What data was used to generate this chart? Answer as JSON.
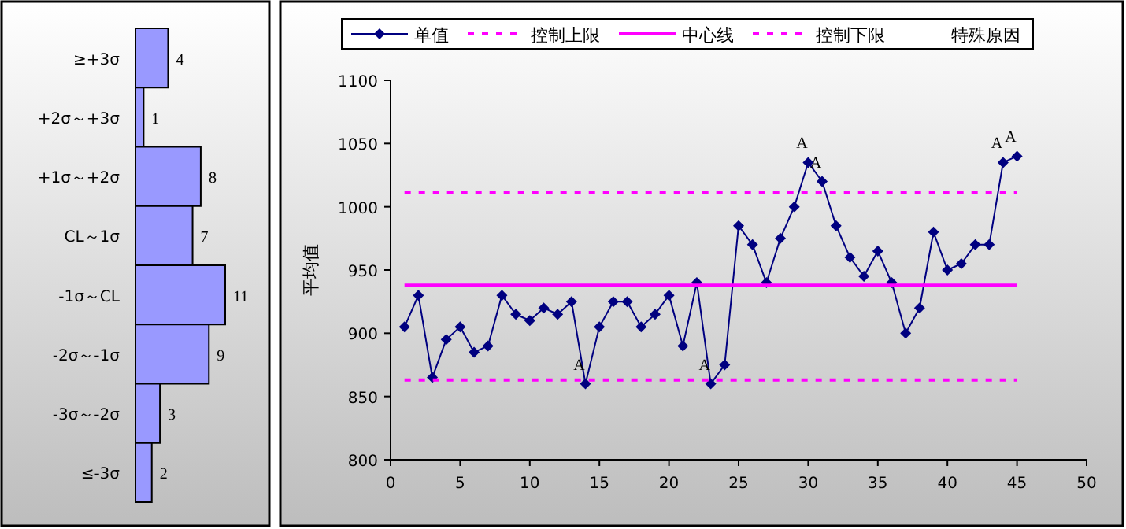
{
  "chart_data": [
    {
      "type": "bar",
      "orientation": "horizontal",
      "categories": [
        "≥+3σ",
        "+2σ～+3σ",
        "+1σ～+2σ",
        "CL～1σ",
        "-1σ～CL",
        "-2σ～-1σ",
        "-3σ～-2σ",
        "≤-3σ"
      ],
      "values": [
        4,
        1,
        8,
        7,
        11,
        9,
        3,
        2
      ],
      "color": "#9999ff",
      "data_labels": true
    },
    {
      "type": "line",
      "ylabel": "平均值",
      "xlim": [
        0,
        50
      ],
      "xticks": [
        0,
        5,
        10,
        15,
        20,
        25,
        30,
        35,
        40,
        45,
        50
      ],
      "ylim": [
        800,
        1100
      ],
      "yticks": [
        800,
        850,
        900,
        950,
        1000,
        1050,
        1100
      ],
      "grid": false,
      "legend": "top",
      "series": [
        {
          "name": "单值",
          "color": "#000080",
          "marker": "diamond",
          "line_style": "solid",
          "x": [
            1,
            2,
            3,
            4,
            5,
            6,
            7,
            8,
            9,
            10,
            11,
            12,
            13,
            14,
            15,
            16,
            17,
            18,
            19,
            20,
            21,
            22,
            23,
            24,
            25,
            26,
            27,
            28,
            29,
            30,
            31,
            32,
            33,
            34,
            35,
            36,
            37,
            38,
            39,
            40,
            41,
            42,
            43,
            44,
            45
          ],
          "values": [
            905,
            930,
            865,
            895,
            905,
            885,
            890,
            930,
            915,
            910,
            920,
            915,
            925,
            860,
            905,
            925,
            925,
            905,
            915,
            930,
            890,
            940,
            860,
            875,
            985,
            970,
            940,
            975,
            1000,
            1035,
            1020,
            985,
            960,
            945,
            965,
            940,
            900,
            920,
            980,
            950,
            955,
            970,
            970,
            1035,
            1040
          ]
        },
        {
          "name": "控制上限",
          "color": "#ff00ff",
          "marker": "none",
          "line_style": "dashed",
          "x": [
            1,
            45
          ],
          "values": [
            1011,
            1011
          ]
        },
        {
          "name": "中心线",
          "color": "#ff00ff",
          "marker": "none",
          "line_style": "solid",
          "x": [
            1,
            45
          ],
          "values": [
            938,
            938
          ]
        },
        {
          "name": "控制下限",
          "color": "#ff00ff",
          "marker": "none",
          "line_style": "dashed",
          "x": [
            1,
            45
          ],
          "values": [
            863,
            863
          ]
        }
      ],
      "annotations": [
        "特殊原因",
        {
          "text": "A",
          "x": 14,
          "y": 860
        },
        {
          "text": "A",
          "x": 23,
          "y": 860
        },
        {
          "text": "A",
          "x": 30,
          "y": 1035
        },
        {
          "text": "A",
          "x": 31,
          "y": 1020
        },
        {
          "text": "A",
          "x": 44,
          "y": 1035
        },
        {
          "text": "A",
          "x": 45,
          "y": 1040
        }
      ]
    }
  ]
}
